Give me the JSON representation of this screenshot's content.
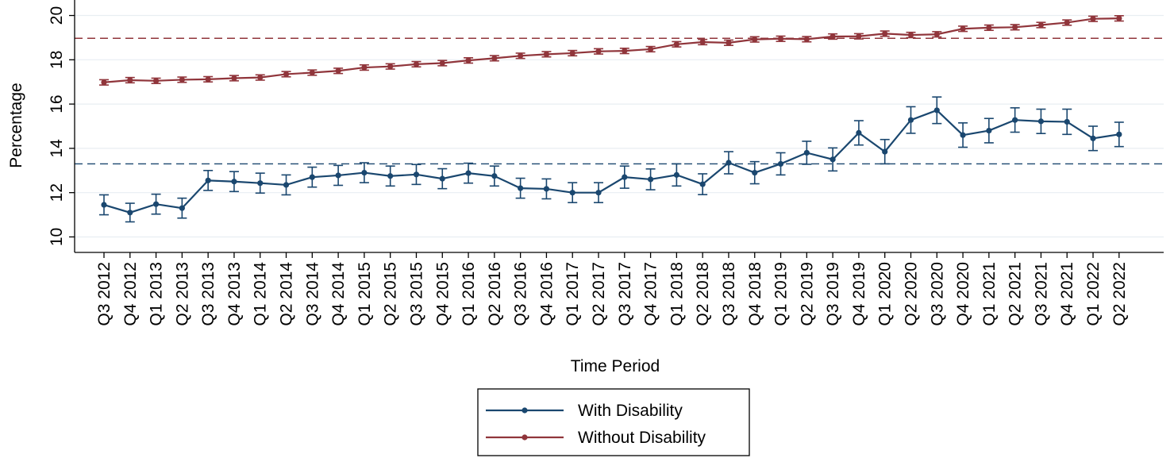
{
  "chart_data": {
    "type": "line",
    "title": "",
    "xlabel": "Time Period",
    "ylabel": "Percentage",
    "ylim": [
      9.3,
      20.7
    ],
    "yticks": [
      10,
      12,
      14,
      16,
      18,
      20
    ],
    "grid": true,
    "legend_position": "bottom",
    "categories": [
      "Q3 2012",
      "Q4 2012",
      "Q1 2013",
      "Q2 2013",
      "Q3 2013",
      "Q4 2013",
      "Q1 2014",
      "Q2 2014",
      "Q3 2014",
      "Q4 2014",
      "Q1 2015",
      "Q2 2015",
      "Q3 2015",
      "Q4 2015",
      "Q1 2016",
      "Q2 2016",
      "Q3 2016",
      "Q4 2016",
      "Q1 2017",
      "Q2 2017",
      "Q3 2017",
      "Q4 2017",
      "Q1 2018",
      "Q2 2018",
      "Q3 2018",
      "Q4 2018",
      "Q1 2019",
      "Q2 2019",
      "Q3 2019",
      "Q4 2019",
      "Q1 2020",
      "Q2 2020",
      "Q3 2020",
      "Q4 2020",
      "Q1 2021",
      "Q2 2021",
      "Q3 2021",
      "Q4 2021",
      "Q1 2022",
      "Q2 2022"
    ],
    "series": [
      {
        "name": "With Disability",
        "color": "#1a476f",
        "values": [
          11.45,
          11.1,
          11.48,
          11.3,
          12.55,
          12.5,
          12.43,
          12.35,
          12.7,
          12.78,
          12.9,
          12.75,
          12.82,
          12.63,
          12.88,
          12.75,
          12.2,
          12.17,
          12.0,
          12.0,
          12.7,
          12.6,
          12.8,
          12.38,
          13.35,
          12.9,
          13.3,
          13.8,
          13.5,
          14.7,
          13.85,
          15.28,
          15.72,
          14.6,
          14.8,
          15.28,
          15.22,
          15.2,
          14.45,
          14.63
        ],
        "ci_halfwidth": [
          0.45,
          0.42,
          0.45,
          0.45,
          0.45,
          0.45,
          0.45,
          0.45,
          0.45,
          0.45,
          0.45,
          0.45,
          0.45,
          0.45,
          0.45,
          0.45,
          0.45,
          0.45,
          0.45,
          0.45,
          0.5,
          0.47,
          0.5,
          0.47,
          0.5,
          0.5,
          0.5,
          0.52,
          0.52,
          0.55,
          0.55,
          0.6,
          0.6,
          0.55,
          0.55,
          0.55,
          0.55,
          0.57,
          0.55,
          0.55
        ],
        "reference_line": 13.3
      },
      {
        "name": "Without Disability",
        "color": "#90353b",
        "values": [
          16.98,
          17.08,
          17.05,
          17.1,
          17.12,
          17.17,
          17.2,
          17.35,
          17.42,
          17.5,
          17.65,
          17.7,
          17.8,
          17.85,
          17.97,
          18.07,
          18.18,
          18.25,
          18.3,
          18.38,
          18.4,
          18.48,
          18.7,
          18.8,
          18.77,
          18.92,
          18.95,
          18.93,
          19.05,
          19.06,
          19.18,
          19.12,
          19.15,
          19.4,
          19.45,
          19.47,
          19.57,
          19.68,
          19.85,
          19.87
        ],
        "ci_halfwidth": 0.12,
        "reference_line": 18.97
      }
    ]
  }
}
